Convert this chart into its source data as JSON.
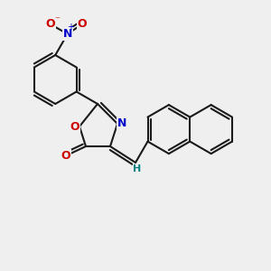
{
  "bg_color": "#efefef",
  "bond_color": "#1a1a1a",
  "atom_colors": {
    "O": "#cc0000",
    "N": "#0000cc",
    "H": "#008080"
  },
  "lw": 1.5,
  "font_size": 9
}
